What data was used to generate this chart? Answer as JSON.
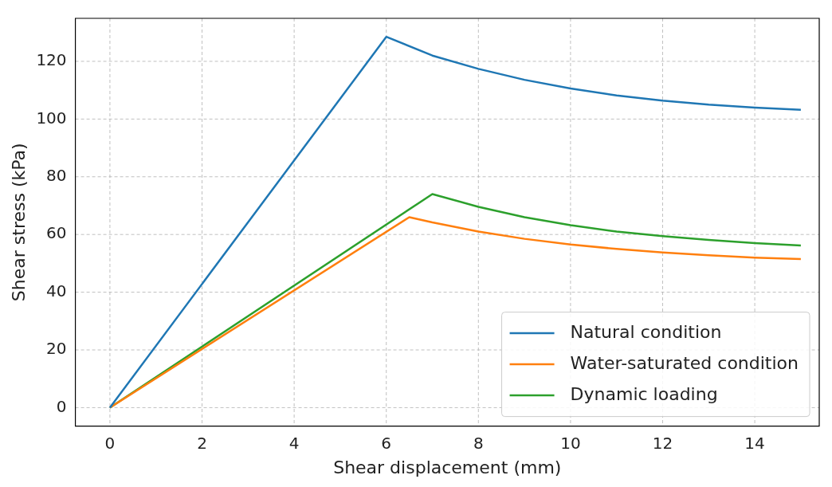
{
  "chart_data": {
    "type": "line",
    "xlabel": "Shear displacement (mm)",
    "ylabel": "Shear stress (kPa)",
    "xlim": [
      -0.75,
      15.4
    ],
    "ylim": [
      -6.4,
      134.9
    ],
    "xticks": [
      0,
      2,
      4,
      6,
      8,
      10,
      12,
      14
    ],
    "yticks": [
      0,
      20,
      40,
      60,
      80,
      100,
      120
    ],
    "grid": true,
    "legend": "bottom right",
    "marker": "none",
    "line_style": "solid",
    "series": [
      {
        "name": "Natural condition",
        "color": "#1f77b4",
        "x": [
          0,
          6,
          7,
          8,
          9,
          10,
          11,
          12,
          13,
          14,
          15
        ],
        "values": [
          0,
          128.5,
          122,
          117.4,
          113.6,
          110.6,
          108.2,
          106.4,
          105,
          104,
          103.2
        ]
      },
      {
        "name": "Water-saturated condition",
        "color": "#ff7f0e",
        "x": [
          0,
          6.5,
          7,
          8,
          9,
          10,
          11,
          12,
          13,
          14,
          15
        ],
        "values": [
          0,
          66,
          64.2,
          61,
          58.5,
          56.5,
          55,
          53.8,
          52.8,
          52,
          51.5
        ]
      },
      {
        "name": "Dynamic loading",
        "color": "#2ca02c",
        "x": [
          0,
          7,
          8,
          9,
          10,
          11,
          12,
          13,
          14,
          15
        ],
        "values": [
          0,
          74,
          69.6,
          66,
          63.2,
          61,
          59.4,
          58.1,
          57,
          56.2
        ]
      }
    ]
  }
}
